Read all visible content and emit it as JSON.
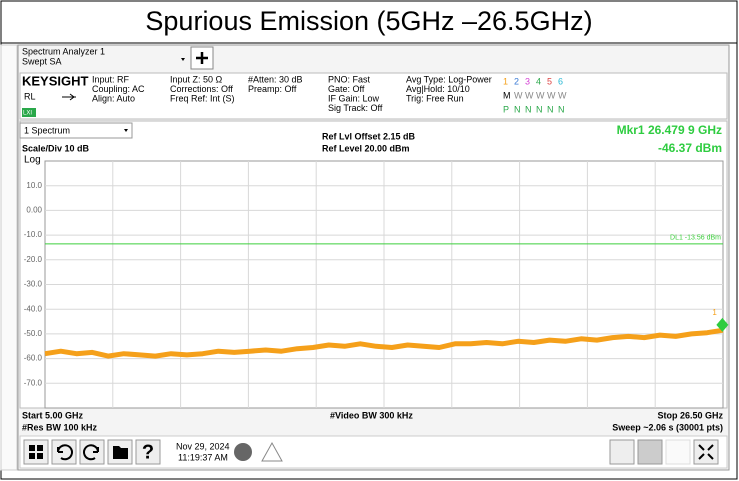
{
  "title": "Spurious Emission (5GHz –26.5GHz)",
  "window": {
    "name": "Spectrum Analyzer 1",
    "mode": "Swept SA"
  },
  "brand": "KEYSIGHT",
  "rl": "RL",
  "lxi": "LXI",
  "settings": [
    [
      "Input: RF",
      "Coupling: AC",
      "Align: Auto"
    ],
    [
      "Input Z: 50 Ω",
      "Corrections: Off",
      "Freq Ref: Int (S)"
    ],
    [
      "#Atten: 30 dB",
      "Preamp: Off"
    ],
    [
      "PNO: Fast",
      "Gate: Off",
      "IF Gain: Low",
      "Sig Track: Off"
    ],
    [
      "Avg Type: Log-Power",
      "Avg|Hold: 10/10",
      "Trig: Free Run"
    ]
  ],
  "traces": {
    "numbers": [
      "1",
      "2",
      "3",
      "4",
      "5",
      "6"
    ],
    "mode_row": [
      "M",
      "W",
      "W",
      "W",
      "W",
      "W"
    ],
    "det_row": [
      "P",
      "N",
      "N",
      "N",
      "N",
      "N"
    ]
  },
  "view": "1 Spectrum",
  "ref_offset": "Ref Lvl Offset 2.15 dB",
  "ref_level": "Ref Level 20.00 dBm",
  "marker_readout": {
    "freq": "Mkr1  26.479 9 GHz",
    "amp": "-46.37 dBm"
  },
  "scale": "Scale/Div 10 dB",
  "log": "Log",
  "chart_data": {
    "type": "line",
    "xlim": [
      5,
      26.5
    ],
    "ylim": [
      -80,
      20
    ],
    "yticks": [
      {
        "value": 10,
        "label": "10.0"
      },
      {
        "value": 0,
        "label": "0.00"
      },
      {
        "value": -10,
        "label": "-10.0"
      },
      {
        "value": -20,
        "label": "-20.0"
      },
      {
        "value": -30,
        "label": "-30.0"
      },
      {
        "value": -40,
        "label": "-40.0"
      },
      {
        "value": -50,
        "label": "-50.0"
      },
      {
        "value": -60,
        "label": "-60.0"
      },
      {
        "value": -70,
        "label": "-70.0"
      }
    ],
    "grid": true,
    "color": "#f5a01a",
    "x": [
      5,
      5.5,
      6,
      6.5,
      7,
      7.5,
      8,
      8.5,
      9,
      9.5,
      10,
      10.5,
      11,
      11.5,
      12,
      12.5,
      13,
      13.5,
      14,
      14.5,
      15,
      15.5,
      16,
      16.5,
      17,
      17.5,
      18,
      18.5,
      19,
      19.5,
      20,
      20.5,
      21,
      21.5,
      22,
      22.5,
      23,
      23.5,
      24,
      24.5,
      25,
      25.5,
      26,
      26.5
    ],
    "values": [
      -58,
      -57,
      -58,
      -57.5,
      -59,
      -58,
      -58.5,
      -59,
      -58,
      -58.5,
      -58,
      -57,
      -57.5,
      -57,
      -56.5,
      -57,
      -56,
      -55.5,
      -54.5,
      -55,
      -54,
      -55,
      -55.5,
      -54.5,
      -55,
      -55.5,
      -54,
      -54,
      -53.5,
      -54,
      -53,
      -53.5,
      -52.5,
      -53,
      -52,
      -52.5,
      -51.5,
      -51,
      -51.5,
      -50.5,
      -51,
      -50,
      -49.5,
      -48.5
    ],
    "display_line": {
      "value": -13.56,
      "label": "DL1 -13.56 dBm",
      "color": "#3ccf3c"
    },
    "marker": {
      "x": 26.4799,
      "y": -46.37,
      "label": "1",
      "color": "#2ecc40"
    }
  },
  "footer": {
    "start": "Start 5.00 GHz",
    "vbw": "#Video BW 300 kHz",
    "stop": "Stop 26.50 GHz",
    "rbw": "#Res BW 100 kHz",
    "sweep": "Sweep ~2.06 s (30001 pts)"
  },
  "clock": {
    "date": "Nov 29, 2024",
    "time": "11:19:37 AM"
  }
}
